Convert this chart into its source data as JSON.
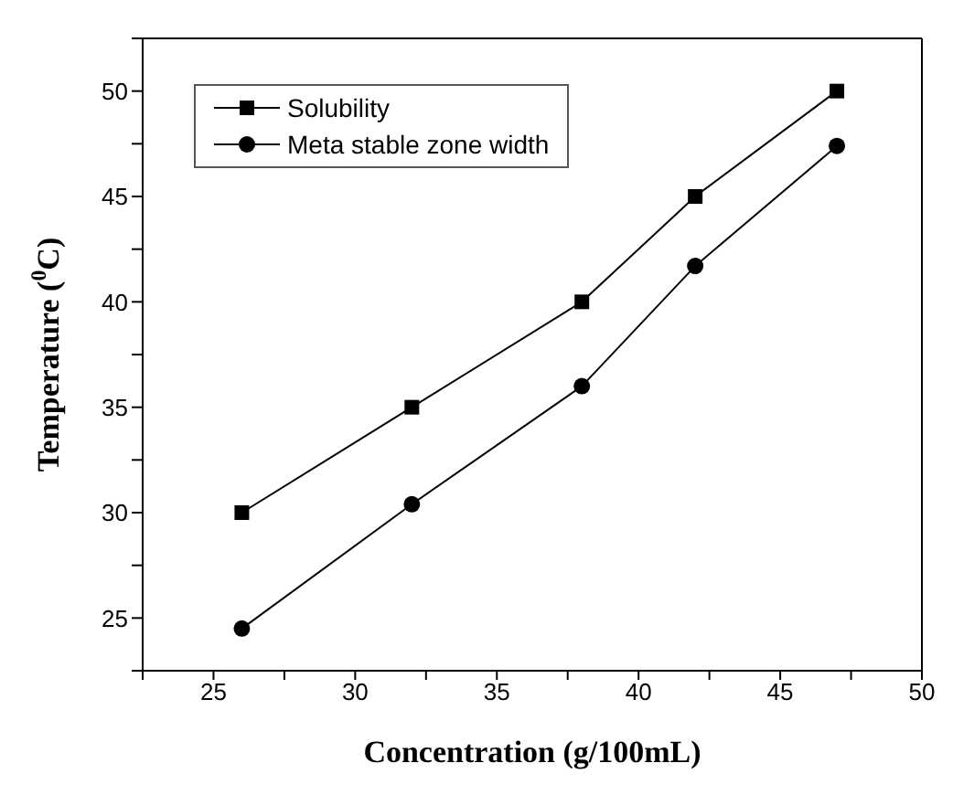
{
  "chart_data": {
    "type": "line",
    "xlabel": "Concentration (g/100mL)",
    "ylabel": "Temperature ($^{0}$C)",
    "x": [
      26,
      32,
      38,
      42,
      47
    ],
    "series": [
      {
        "name": "Solubility",
        "color": "#000000",
        "marker": "square",
        "values": [
          30,
          35,
          40,
          45,
          50
        ]
      },
      {
        "name": "Meta stable zone width",
        "color": "#000000",
        "marker": "circle",
        "values": [
          24.5,
          30.4,
          36,
          41.7,
          47.4
        ]
      }
    ],
    "xlim": [
      22.5,
      50
    ],
    "xticks": [
      {
        "value": 22.5,
        "label": null
      },
      25,
      {
        "value": 27.5,
        "label": null
      },
      30,
      {
        "value": 32.5,
        "label": null
      },
      35,
      {
        "value": 37.5,
        "label": null
      },
      40,
      {
        "value": 42.5,
        "label": null
      },
      45,
      {
        "value": 47.5,
        "label": null
      },
      50
    ],
    "ylim": [
      22.5,
      52.5
    ],
    "yticks": [
      {
        "value": 22.5,
        "label": null
      },
      25,
      {
        "value": 27.5,
        "label": null
      },
      30,
      {
        "value": 32.5,
        "label": null
      },
      35,
      {
        "value": 37.5,
        "label": null
      },
      40,
      {
        "value": 42.5,
        "label": null
      },
      45,
      {
        "value": 47.5,
        "label": null
      },
      50,
      {
        "value": 52.5,
        "label": null
      }
    ],
    "grid": false,
    "legend": "top left",
    "line_style": "solid"
  }
}
